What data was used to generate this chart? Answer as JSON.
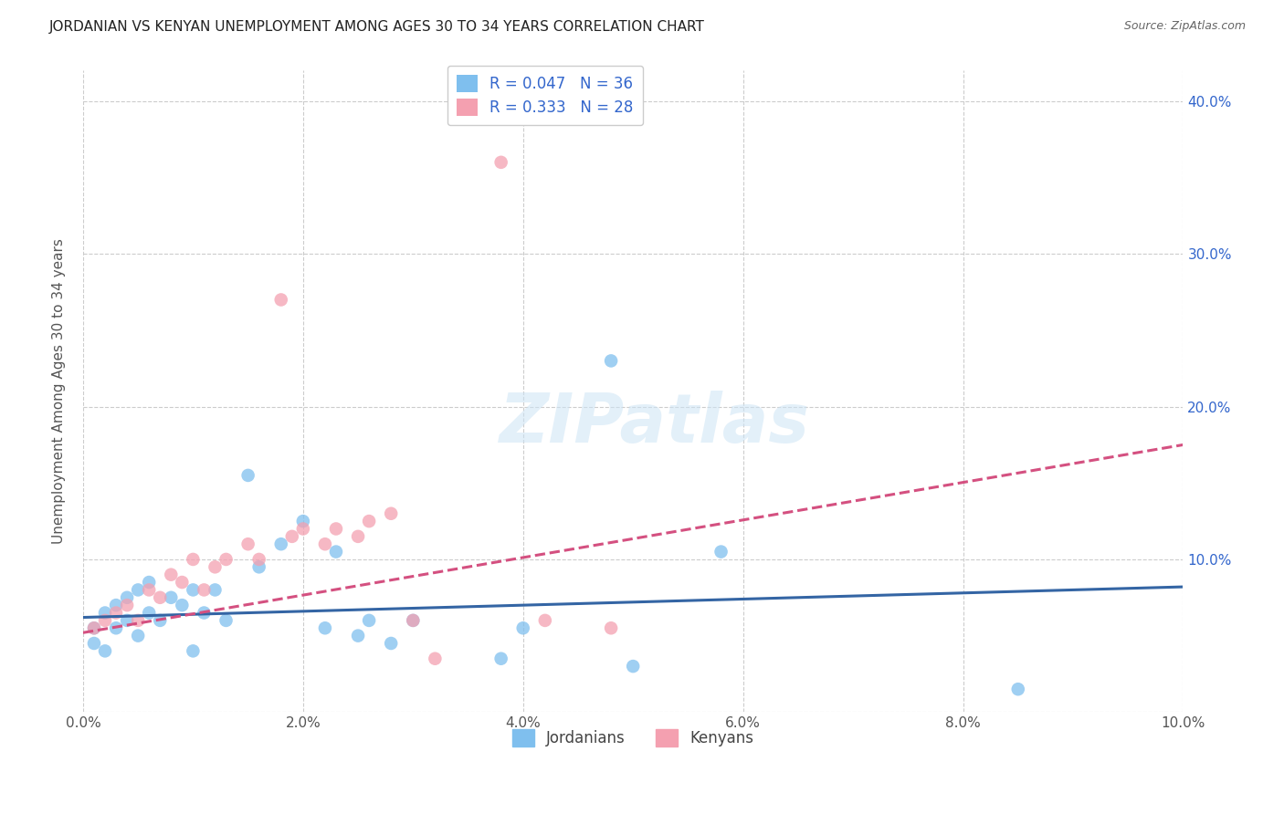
{
  "title": "JORDANIAN VS KENYAN UNEMPLOYMENT AMONG AGES 30 TO 34 YEARS CORRELATION CHART",
  "source": "Source: ZipAtlas.com",
  "ylabel": "Unemployment Among Ages 30 to 34 years",
  "xlim": [
    0.0,
    0.1
  ],
  "ylim": [
    0.0,
    0.42
  ],
  "xticks": [
    0.0,
    0.02,
    0.04,
    0.06,
    0.08,
    0.1
  ],
  "yticks": [
    0.0,
    0.1,
    0.2,
    0.3,
    0.4
  ],
  "xticklabels": [
    "0.0%",
    "2.0%",
    "4.0%",
    "6.0%",
    "8.0%",
    "10.0%"
  ],
  "yticklabels_left": [
    "",
    "",
    "",
    "",
    ""
  ],
  "yticklabels_right": [
    "",
    "10.0%",
    "20.0%",
    "30.0%",
    "40.0%"
  ],
  "blue_color": "#7fbfee",
  "pink_color": "#f4a0b0",
  "blue_line_color": "#3465a4",
  "pink_line_color": "#d45080",
  "title_color": "#222222",
  "legend_text_color": "#3366cc",
  "grid_color": "#cccccc",
  "watermark": "ZIPatlas",
  "jordanians_x": [
    0.001,
    0.001,
    0.002,
    0.002,
    0.003,
    0.003,
    0.004,
    0.004,
    0.005,
    0.005,
    0.006,
    0.006,
    0.007,
    0.008,
    0.009,
    0.01,
    0.01,
    0.011,
    0.012,
    0.013,
    0.015,
    0.016,
    0.018,
    0.02,
    0.022,
    0.023,
    0.025,
    0.026,
    0.028,
    0.03,
    0.038,
    0.04,
    0.048,
    0.05,
    0.058,
    0.085
  ],
  "jordanians_y": [
    0.055,
    0.045,
    0.065,
    0.04,
    0.055,
    0.07,
    0.06,
    0.075,
    0.05,
    0.08,
    0.065,
    0.085,
    0.06,
    0.075,
    0.07,
    0.08,
    0.04,
    0.065,
    0.08,
    0.06,
    0.155,
    0.095,
    0.11,
    0.125,
    0.055,
    0.105,
    0.05,
    0.06,
    0.045,
    0.06,
    0.035,
    0.055,
    0.23,
    0.03,
    0.105,
    0.015
  ],
  "kenyans_x": [
    0.001,
    0.002,
    0.003,
    0.004,
    0.005,
    0.006,
    0.007,
    0.008,
    0.009,
    0.01,
    0.011,
    0.012,
    0.013,
    0.015,
    0.016,
    0.018,
    0.019,
    0.02,
    0.022,
    0.023,
    0.025,
    0.026,
    0.028,
    0.03,
    0.032,
    0.038,
    0.042,
    0.048
  ],
  "kenyans_y": [
    0.055,
    0.06,
    0.065,
    0.07,
    0.06,
    0.08,
    0.075,
    0.09,
    0.085,
    0.1,
    0.08,
    0.095,
    0.1,
    0.11,
    0.1,
    0.27,
    0.115,
    0.12,
    0.11,
    0.12,
    0.115,
    0.125,
    0.13,
    0.06,
    0.035,
    0.36,
    0.06,
    0.055
  ],
  "blue_line_x0": 0.0,
  "blue_line_x1": 0.1,
  "blue_line_y0": 0.062,
  "blue_line_y1": 0.082,
  "pink_line_x0": 0.0,
  "pink_line_x1": 0.1,
  "pink_line_y0": 0.052,
  "pink_line_y1": 0.175
}
